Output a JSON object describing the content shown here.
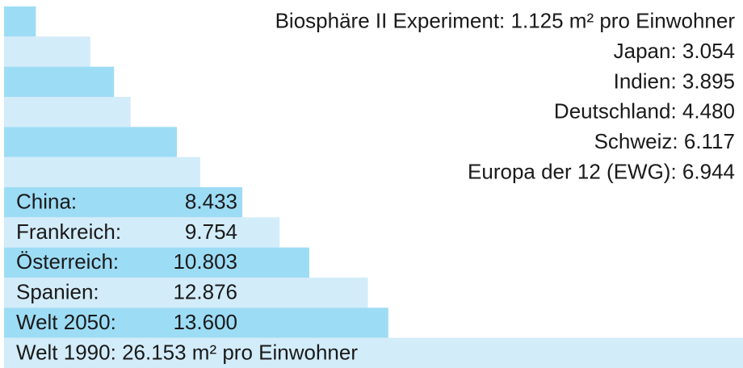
{
  "chart_data": {
    "type": "hbar",
    "categories": [
      "Biosphäre II Experiment:",
      "Japan:",
      "Indien:",
      "Deutschland:",
      "Schweiz:",
      "Europa der 12 (EWG):",
      "China:",
      "Frankreich:",
      "Österreich:",
      "Spanien:",
      "Welt 2050:",
      "Welt 1990:"
    ],
    "values": [
      1125,
      3054,
      3895,
      4480,
      6117,
      6944,
      8433,
      9754,
      10803,
      12876,
      13600,
      26153
    ],
    "value_labels": [
      "1.125 m² pro Einwohner",
      "3.054",
      "3.895",
      "4.480",
      "6.117",
      "6.944",
      "8.433",
      "9.754",
      "10.803",
      "12.876",
      "13.600",
      "26.153 m² pro Einwohner"
    ],
    "colors": [
      "#9ddcf5",
      "#d3ecf9",
      "#9ddcf5",
      "#d3ecf9",
      "#9ddcf5",
      "#d3ecf9",
      "#9ddcf5",
      "#d3ecf9",
      "#9ddcf5",
      "#d3ecf9",
      "#9ddcf5",
      "#d3ecf9"
    ]
  }
}
